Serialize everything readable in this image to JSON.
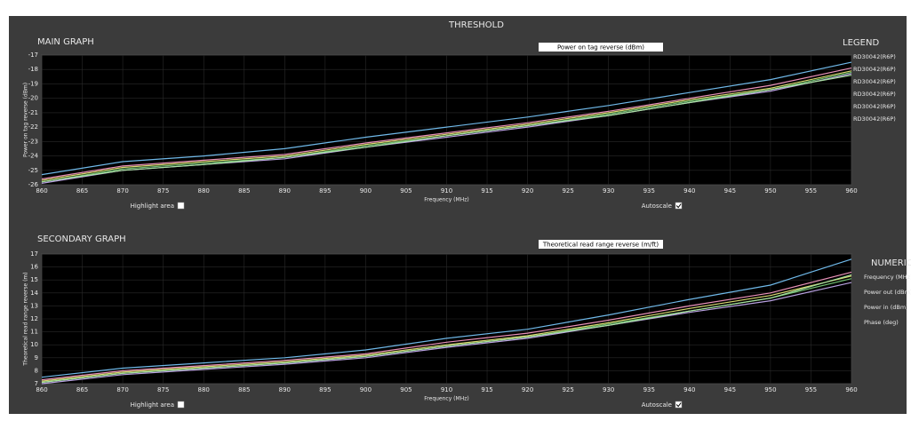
{
  "header": {
    "title": "THRESHOLD"
  },
  "chart_data": [
    {
      "type": "line",
      "panel_label": "MAIN GRAPH",
      "title": "Power on tag reverse (dBm)",
      "y_label": "Power on tag reverse (dBm)",
      "x_label": "Frequency (MHz)",
      "x": [
        860,
        870,
        880,
        890,
        900,
        910,
        920,
        930,
        940,
        950,
        960
      ],
      "xlim": [
        860,
        960
      ],
      "xticks": [
        860,
        865,
        870,
        875,
        880,
        885,
        890,
        895,
        900,
        905,
        910,
        915,
        920,
        925,
        930,
        935,
        940,
        945,
        950,
        955,
        960
      ],
      "ylim": [
        -26,
        -17
      ],
      "yticks": [
        -26,
        -25,
        -24,
        -23,
        -22,
        -21,
        -20,
        -19,
        -18,
        -17
      ],
      "grid": true,
      "series": [
        {
          "name": "RD30042(R6P)",
          "color": "#6fb8e8",
          "values": [
            -25.3,
            -24.4,
            -24.0,
            -23.5,
            -22.7,
            -22.0,
            -21.3,
            -20.5,
            -19.6,
            -18.7,
            -17.5
          ]
        },
        {
          "name": "RD30042(R6P)",
          "color": "#e890b8",
          "values": [
            -25.6,
            -24.7,
            -24.3,
            -23.9,
            -23.1,
            -22.4,
            -21.7,
            -20.9,
            -20.0,
            -19.1,
            -17.9
          ]
        },
        {
          "name": "RD30042(R6P)",
          "color": "#d8d870",
          "values": [
            -25.7,
            -24.8,
            -24.4,
            -24.0,
            -23.2,
            -22.5,
            -21.8,
            -21.0,
            -20.1,
            -19.3,
            -18.1
          ]
        },
        {
          "name": "RD30042(R6P)",
          "color": "#70c070",
          "values": [
            -25.8,
            -24.9,
            -24.5,
            -24.1,
            -23.3,
            -22.6,
            -21.9,
            -21.1,
            -20.2,
            -19.4,
            -18.2
          ]
        },
        {
          "name": "RD30042(R6P)",
          "color": "#b8a0e0",
          "values": [
            -25.9,
            -25.0,
            -24.6,
            -24.2,
            -23.4,
            -22.7,
            -22.0,
            -21.2,
            -20.3,
            -19.5,
            -18.3
          ]
        },
        {
          "name": "RD30042(R6P)",
          "color": "#a8e0a0",
          "values": [
            -25.8,
            -25.0,
            -24.6,
            -24.1,
            -23.4,
            -22.6,
            -21.9,
            -21.2,
            -20.3,
            -19.4,
            -18.4
          ]
        }
      ],
      "controls": [
        {
          "label": "Highlight area",
          "checked": false
        },
        {
          "label": "Autoscale",
          "checked": true
        }
      ]
    },
    {
      "type": "line",
      "panel_label": "SECONDARY GRAPH",
      "title": "Theoretical read range reverse (m/ft)",
      "y_label": "Theoretical read range reverse (m)",
      "x_label": "Frequency (MHz)",
      "x": [
        860,
        870,
        880,
        890,
        900,
        910,
        920,
        930,
        940,
        950,
        960
      ],
      "xlim": [
        860,
        960
      ],
      "xticks": [
        860,
        865,
        870,
        875,
        880,
        885,
        890,
        895,
        900,
        905,
        910,
        915,
        920,
        925,
        930,
        935,
        940,
        945,
        950,
        955,
        960
      ],
      "ylim": [
        7,
        17
      ],
      "yticks": [
        7,
        8,
        9,
        10,
        11,
        12,
        13,
        14,
        15,
        16,
        17
      ],
      "grid": true,
      "series": [
        {
          "color": "#6fb8e8",
          "values": [
            7.5,
            8.2,
            8.6,
            9.0,
            9.6,
            10.5,
            11.2,
            12.3,
            13.5,
            14.6,
            16.6
          ]
        },
        {
          "color": "#e890b8",
          "values": [
            7.3,
            8.0,
            8.4,
            8.8,
            9.3,
            10.2,
            10.9,
            11.9,
            13.0,
            14.0,
            15.6
          ]
        },
        {
          "color": "#d8d870",
          "values": [
            7.2,
            7.9,
            8.3,
            8.7,
            9.2,
            10.0,
            10.7,
            11.7,
            12.8,
            13.8,
            15.3
          ]
        },
        {
          "color": "#70c070",
          "values": [
            7.1,
            7.8,
            8.2,
            8.6,
            9.1,
            9.9,
            10.6,
            11.6,
            12.6,
            13.6,
            15.1
          ]
        },
        {
          "color": "#b8a0e0",
          "values": [
            7.0,
            7.7,
            8.1,
            8.5,
            9.0,
            9.8,
            10.5,
            11.5,
            12.5,
            13.4,
            14.8
          ]
        },
        {
          "color": "#a8e0a0",
          "values": [
            7.1,
            7.8,
            8.2,
            8.6,
            9.1,
            9.9,
            10.6,
            11.5,
            12.6,
            13.6,
            15.4
          ]
        }
      ],
      "controls": [
        {
          "label": "Highlight area",
          "checked": false
        },
        {
          "label": "Autoscale",
          "checked": true
        }
      ]
    }
  ],
  "legend": {
    "title": "LEGEND"
  },
  "numeric": {
    "title": "NUMERIC",
    "entries": [
      "Frequency (MHz)",
      "Power out (dBm)",
      "Power in (dBm)",
      "Phase (deg)"
    ]
  }
}
